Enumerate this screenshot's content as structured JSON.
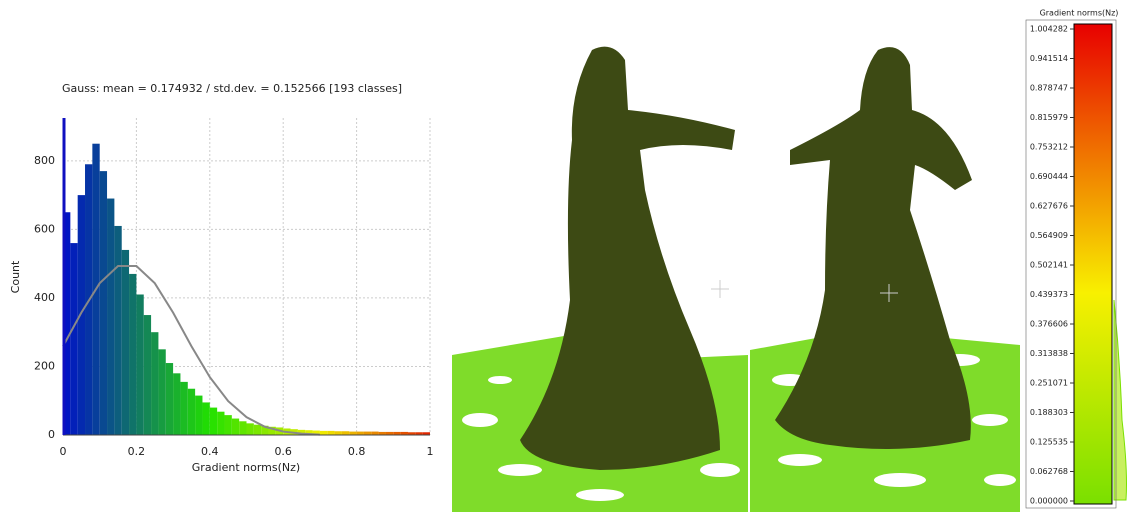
{
  "chart_data": {
    "type": "histogram",
    "title": "Gauss: mean = 0.174932 / std.dev. = 0.152566 [193 classes]",
    "x_label": "Gradient norms(Nz)",
    "y_label": "Count",
    "bins": [
      0,
      0.02,
      0.04,
      0.06,
      0.08,
      0.1,
      0.12,
      0.14,
      0.16,
      0.18,
      0.2,
      0.22,
      0.24,
      0.26,
      0.28,
      0.3,
      0.32,
      0.34,
      0.36,
      0.38,
      0.4,
      0.42,
      0.44,
      0.46,
      0.48,
      0.5,
      0.52,
      0.54,
      0.56,
      0.58,
      0.6,
      0.62,
      0.64,
      0.66,
      0.68,
      0.7,
      0.72,
      0.74,
      0.76,
      0.78,
      0.8,
      0.82,
      0.84,
      0.86,
      0.88,
      0.9,
      0.92,
      0.94,
      0.96,
      0.98,
      1
    ],
    "counts": [
      650,
      560,
      700,
      790,
      850,
      770,
      690,
      610,
      540,
      470,
      410,
      350,
      300,
      250,
      210,
      180,
      155,
      135,
      115,
      95,
      80,
      68,
      58,
      48,
      40,
      34,
      30,
      27,
      24,
      22,
      19,
      17,
      15,
      14,
      13,
      12,
      12,
      11,
      11,
      10,
      10,
      10,
      10,
      9,
      9,
      9,
      9,
      8,
      8,
      8
    ],
    "colormap": [
      {
        "at": 0,
        "color": "#0010c8"
      },
      {
        "at": 0.4,
        "color": "#22e000"
      },
      {
        "at": 0.7,
        "color": "#f0f000"
      },
      {
        "at": 1,
        "color": "#e02000"
      }
    ],
    "gauss": {
      "color": "#888888",
      "x": [
        0,
        0.05,
        0.1,
        0.15,
        0.2,
        0.25,
        0.3,
        0.35,
        0.4,
        0.45,
        0.5,
        0.55,
        0.6,
        0.65,
        0.7
      ],
      "values": [
        259,
        357,
        443,
        493,
        493,
        443,
        357,
        259,
        169,
        99,
        52,
        24,
        10,
        4,
        1
      ]
    },
    "xlim": [
      0,
      1
    ],
    "ylim": [
      0,
      925
    ],
    "xticks": [
      0,
      0.2,
      0.4,
      0.6,
      0.8,
      1
    ],
    "yticks": [
      0,
      200,
      400,
      600,
      800
    ],
    "grid": true
  },
  "color_scale": {
    "title": "Gradient norms(Nz)",
    "colors": [
      {
        "at": 0,
        "color": "#7ae000"
      },
      {
        "at": 0.44,
        "color": "#f8f000"
      },
      {
        "at": 1,
        "color": "#e80000"
      }
    ],
    "ticks": [
      {
        "value": 0,
        "label": "0.000000"
      },
      {
        "value": 0.062768,
        "label": "0.062768"
      },
      {
        "value": 0.125535,
        "label": "0.125535"
      },
      {
        "value": 0.188303,
        "label": "0.188303"
      },
      {
        "value": 0.251071,
        "label": "0.251071"
      },
      {
        "value": 0.313838,
        "label": "0.313838"
      },
      {
        "value": 0.376606,
        "label": "0.376606"
      },
      {
        "value": 0.439373,
        "label": "0.439373"
      },
      {
        "value": 0.502141,
        "label": "0.502141"
      },
      {
        "value": 0.564909,
        "label": "0.564909"
      },
      {
        "value": 0.627676,
        "label": "0.627676"
      },
      {
        "value": 0.690444,
        "label": "0.690444"
      },
      {
        "value": 0.753212,
        "label": "0.753212"
      },
      {
        "value": 0.815979,
        "label": "0.815979"
      },
      {
        "value": 0.878747,
        "label": "0.878747"
      },
      {
        "value": 0.941514,
        "label": "0.941514"
      },
      {
        "value": 1.004282,
        "label": "1.004282"
      }
    ]
  }
}
